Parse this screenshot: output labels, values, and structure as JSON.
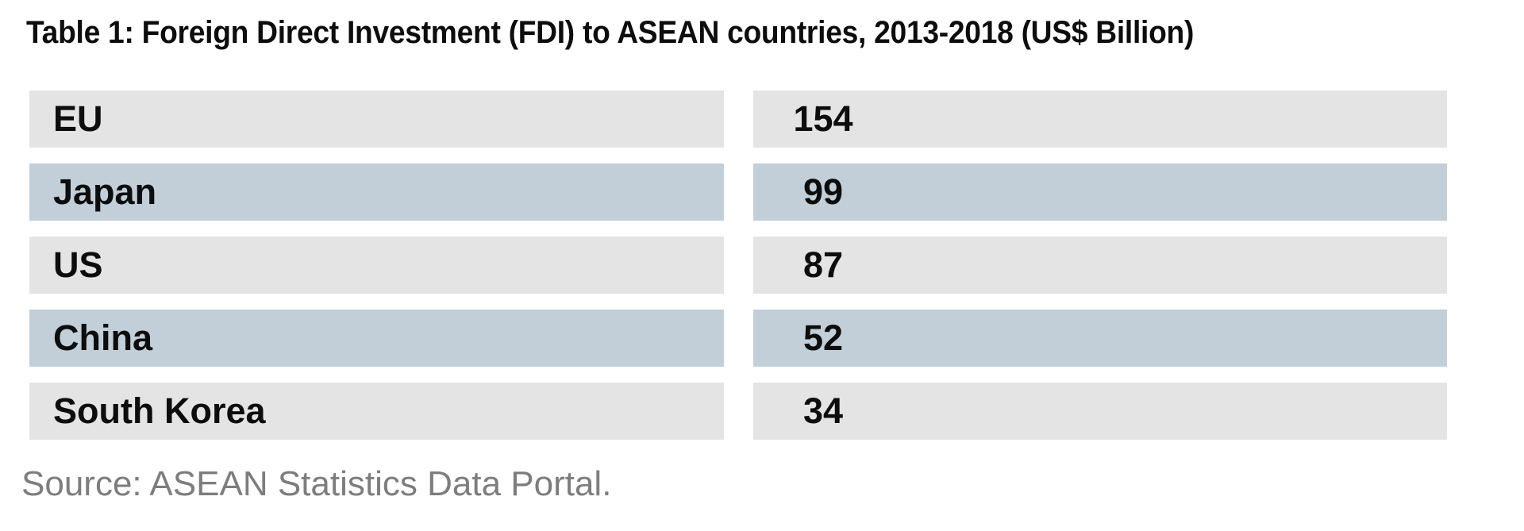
{
  "title": "Table 1: Foreign Direct Investment (FDI) to ASEAN countries, 2013-2018 (US$ Billion)",
  "source_note": "Source: ASEAN Statistics Data Portal.",
  "colors": {
    "row_stripe_gray": "#e4e4e4",
    "row_stripe_blue": "#c2cfd9",
    "text": "#0d0d0d",
    "source_text": "#7d7d7d",
    "background": "#ffffff"
  },
  "chart_data": {
    "type": "table",
    "title": "Table 1: Foreign Direct Investment (FDI) to ASEAN countries, 2013-2018 (US$ Billion)",
    "unit": "US$ Billion",
    "categories": [
      "EU",
      "Japan",
      "US",
      "China",
      "South Korea"
    ],
    "values": [
      154,
      99,
      87,
      52,
      34
    ],
    "rows": [
      {
        "label": "EU",
        "value": "154"
      },
      {
        "label": "Japan",
        "value": "99"
      },
      {
        "label": "US",
        "value": "87"
      },
      {
        "label": "China",
        "value": "52"
      },
      {
        "label": "South Korea",
        "value": "34"
      }
    ],
    "layout_hints": {
      "striped_rows": true,
      "stripe_colors": [
        "#e4e4e4",
        "#c2cfd9"
      ],
      "columns": 2,
      "source_note": "Source: ASEAN Statistics Data Portal."
    }
  }
}
